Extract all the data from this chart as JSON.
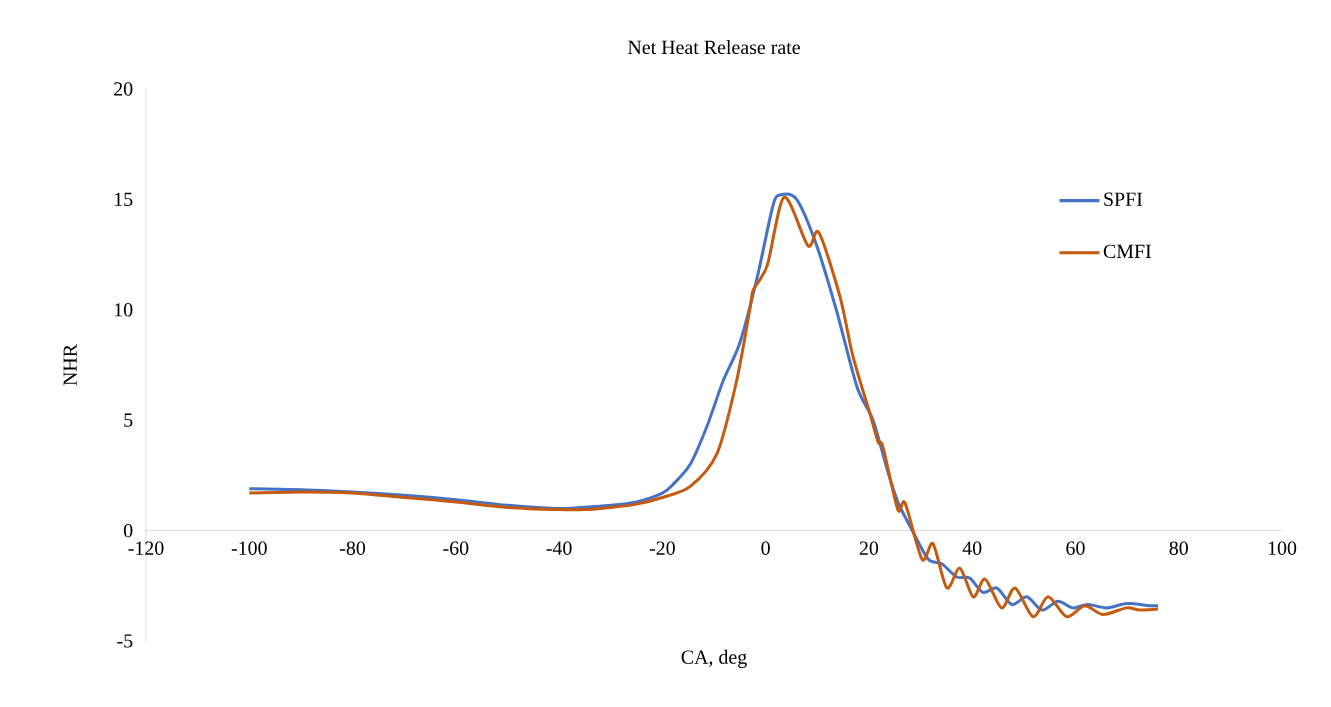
{
  "chart_data": {
    "type": "line",
    "title": "Net Heat Release  rate",
    "xlabel": "CA, deg",
    "ylabel": "NHR",
    "xlim": [
      -120,
      100
    ],
    "xticks": [
      -120,
      -100,
      -80,
      -60,
      -40,
      -20,
      0,
      20,
      40,
      60,
      80,
      100
    ],
    "ylim": [
      -5,
      20
    ],
    "yticks": [
      -5,
      0,
      5,
      10,
      15,
      20
    ],
    "grid": false,
    "legend": "right",
    "marker": "none",
    "line_style": "solid",
    "series": [
      {
        "name": "SPFI",
        "color": "#4472c4",
        "x": [
          -100,
          -90,
          -80,
          -70,
          -60,
          -50,
          -40,
          -30,
          -25,
          -20,
          -17.9,
          -14.6,
          -11.4,
          -8.2,
          -5,
          -1.7,
          1.4,
          2.8,
          6.0,
          9.9,
          13.8,
          17.7,
          20.8,
          23.5,
          25.6,
          28.3,
          31.5,
          34.1,
          37.0,
          39.5,
          42.1,
          44.8,
          47.7,
          50.6,
          53.5,
          56.6,
          59.5,
          62.4,
          66.1,
          70.0,
          74.4,
          76
        ],
        "values": [
          1.9,
          1.85,
          1.75,
          1.6,
          1.4,
          1.15,
          1.0,
          1.15,
          1.3,
          1.7,
          2.1,
          3.0,
          4.7,
          6.8,
          8.5,
          11.4,
          14.7,
          15.2,
          15.0,
          12.9,
          9.9,
          6.5,
          5.0,
          2.8,
          1.3,
          0.05,
          -1.3,
          -1.5,
          -2.1,
          -2.15,
          -2.8,
          -2.6,
          -3.35,
          -3.0,
          -3.6,
          -3.2,
          -3.5,
          -3.35,
          -3.5,
          -3.3,
          -3.4,
          -3.4
        ]
      },
      {
        "name": "CMFI",
        "color": "#c55a11",
        "x": [
          -100,
          -90,
          -80,
          -70,
          -60,
          -50,
          -40,
          -35,
          -30,
          -25,
          -20,
          -14.6,
          -9.4,
          -5.6,
          -3.0,
          -2.4,
          0.3,
          3.6,
          8.2,
          10.3,
          14.4,
          16.9,
          20.2,
          21.8,
          22.7,
          25.6,
          27.0,
          30.3,
          32.4,
          35.1,
          37.6,
          40.2,
          42.5,
          45.7,
          48.3,
          51.8,
          54.7,
          58.3,
          61.8,
          65.3,
          69.9,
          72.5,
          76
        ],
        "values": [
          1.7,
          1.75,
          1.7,
          1.5,
          1.3,
          1.05,
          0.95,
          0.95,
          1.05,
          1.2,
          1.5,
          2.0,
          3.5,
          6.8,
          10.1,
          10.9,
          12.0,
          15.1,
          12.9,
          13.5,
          10.6,
          7.9,
          5.3,
          4.0,
          3.8,
          0.95,
          1.25,
          -1.3,
          -0.6,
          -2.6,
          -1.7,
          -3.0,
          -2.2,
          -3.5,
          -2.6,
          -3.9,
          -3.0,
          -3.9,
          -3.4,
          -3.8,
          -3.5,
          -3.6,
          -3.55
        ]
      }
    ]
  }
}
